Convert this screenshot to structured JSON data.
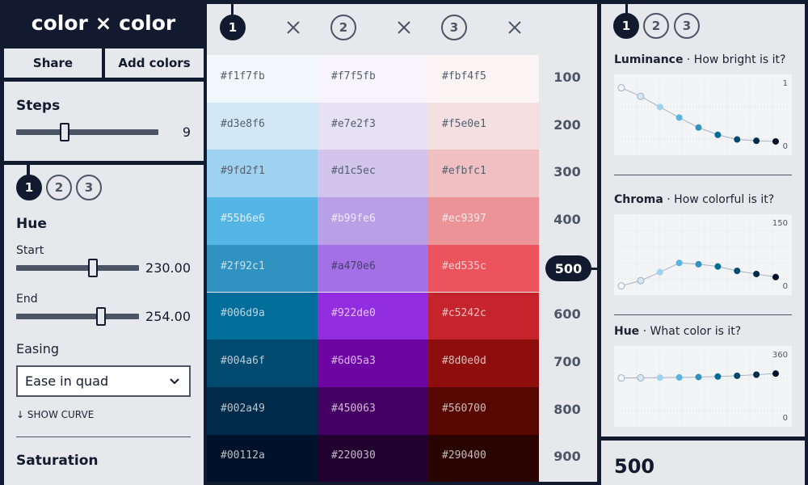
{
  "app": {
    "title": "color × color"
  },
  "toolbar": {
    "share_label": "Share",
    "add_colors_label": "Add colors"
  },
  "steps": {
    "label": "Steps",
    "value": "9",
    "slider_fraction": 0.33
  },
  "color_tabs": [
    "1",
    "2",
    "3"
  ],
  "hue_panel": {
    "title": "Hue",
    "start_label": "Start",
    "start_value": "230.00",
    "start_fraction": 0.64,
    "end_label": "End",
    "end_value": "254.00",
    "end_fraction": 0.7,
    "easing_label": "Easing",
    "easing_value": "Ease in quad",
    "show_curve_label": "↓ SHOW CURVE",
    "next_section_title": "Saturation"
  },
  "palette": {
    "columns": [
      {
        "id": "1",
        "colors": [
          "#f1f7fb",
          "#d3e8f6",
          "#9fd2f1",
          "#55b6e6",
          "#2f92c1",
          "#006d9a",
          "#004a6f",
          "#002a49",
          "#00112a"
        ]
      },
      {
        "id": "2",
        "colors": [
          "#f7f5fb",
          "#e7e2f3",
          "#d1c5ec",
          "#b99fe6",
          "#a470e6",
          "#922de0",
          "#6d05a3",
          "#450063",
          "#220030"
        ]
      },
      {
        "id": "3",
        "colors": [
          "#fbf4f5",
          "#f5e0e1",
          "#efbfc1",
          "#ec9397",
          "#ed535c",
          "#c5242c",
          "#8d0e0d",
          "#560700",
          "#290400"
        ]
      }
    ],
    "steps": [
      "100",
      "200",
      "300",
      "400",
      "500",
      "600",
      "700",
      "800",
      "900"
    ],
    "active_step": "500"
  },
  "analysis": {
    "tabs": [
      "1",
      "2",
      "3"
    ],
    "charts": [
      {
        "title": "Luminance",
        "subtitle": "· How bright is it?",
        "max_label": "1",
        "min_label": "0",
        "max": 1,
        "values": [
          0.92,
          0.79,
          0.63,
          0.47,
          0.32,
          0.21,
          0.14,
          0.12,
          0.11
        ]
      },
      {
        "title": "Chroma",
        "subtitle": "· How colorful is it?",
        "max_label": "150",
        "min_label": "0",
        "max": 150,
        "values": [
          6,
          18,
          37,
          58,
          55,
          50,
          40,
          33,
          26
        ]
      },
      {
        "title": "Hue",
        "subtitle": "· What color is it?",
        "max_label": "360",
        "min_label": "0",
        "max": 360,
        "values": [
          230,
          231,
          232,
          233,
          235,
          238,
          242,
          248,
          254
        ]
      }
    ]
  },
  "selection": {
    "step": "500"
  }
}
